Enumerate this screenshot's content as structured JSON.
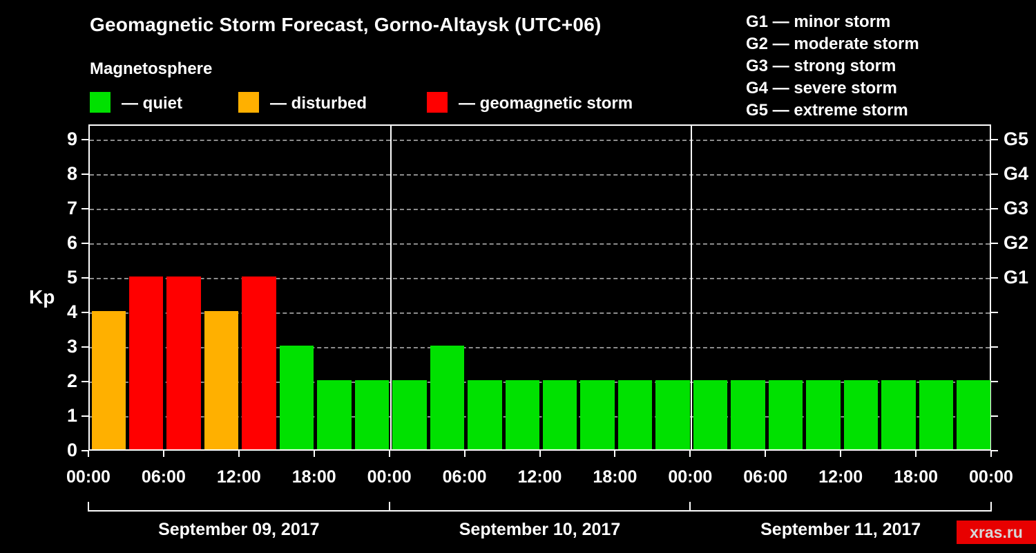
{
  "header": {
    "title": "Geomagnetic Storm Forecast, Gorno-Altaysk (UTC+06)",
    "subtitle": "Magnetosphere"
  },
  "legend": {
    "quiet": {
      "label": "— quiet",
      "color": "#00e100"
    },
    "disturbed": {
      "label": "— disturbed",
      "color": "#ffb000"
    },
    "storm": {
      "label": "— geomagnetic storm",
      "color": "#ff0000"
    }
  },
  "g_scale_legend": [
    {
      "code": "G1",
      "label": "minor storm"
    },
    {
      "code": "G2",
      "label": "moderate storm"
    },
    {
      "code": "G3",
      "label": "strong storm"
    },
    {
      "code": "G4",
      "label": "severe storm"
    },
    {
      "code": "G5",
      "label": "extreme storm"
    }
  ],
  "watermark": "xras.ru",
  "chart_data": {
    "type": "bar",
    "title": "Geomagnetic Storm Forecast, Gorno-Altaysk (UTC+06)",
    "ylabel": "Kp",
    "ylim": [
      0,
      9.4
    ],
    "yticks": [
      0,
      1,
      2,
      3,
      4,
      5,
      6,
      7,
      8,
      9
    ],
    "grid": "dashed horizontal",
    "interval_hours": 3,
    "x_tick_step_hours": 6,
    "x_tick_labels": [
      "00:00",
      "06:00",
      "12:00",
      "18:00",
      "00:00",
      "06:00",
      "12:00",
      "18:00",
      "00:00",
      "06:00",
      "12:00",
      "18:00",
      "00:00"
    ],
    "right_axis": [
      {
        "kp": 5,
        "label": "G1"
      },
      {
        "kp": 6,
        "label": "G2"
      },
      {
        "kp": 7,
        "label": "G3"
      },
      {
        "kp": 8,
        "label": "G4"
      },
      {
        "kp": 9,
        "label": "G5"
      }
    ],
    "days": [
      {
        "date": "September 09, 2017",
        "kp": [
          4,
          5,
          5,
          4,
          5,
          3,
          2,
          2
        ],
        "status": [
          "disturbed",
          "storm",
          "storm",
          "disturbed",
          "storm",
          "quiet",
          "quiet",
          "quiet"
        ]
      },
      {
        "date": "September 10, 2017",
        "kp": [
          2,
          3,
          2,
          2,
          2,
          2,
          2,
          2
        ],
        "status": [
          "quiet",
          "quiet",
          "quiet",
          "quiet",
          "quiet",
          "quiet",
          "quiet",
          "quiet"
        ]
      },
      {
        "date": "September 11, 2017",
        "kp": [
          2,
          2,
          2,
          2,
          2,
          2,
          2,
          2
        ],
        "status": [
          "quiet",
          "quiet",
          "quiet",
          "quiet",
          "quiet",
          "quiet",
          "quiet",
          "quiet"
        ]
      }
    ]
  }
}
